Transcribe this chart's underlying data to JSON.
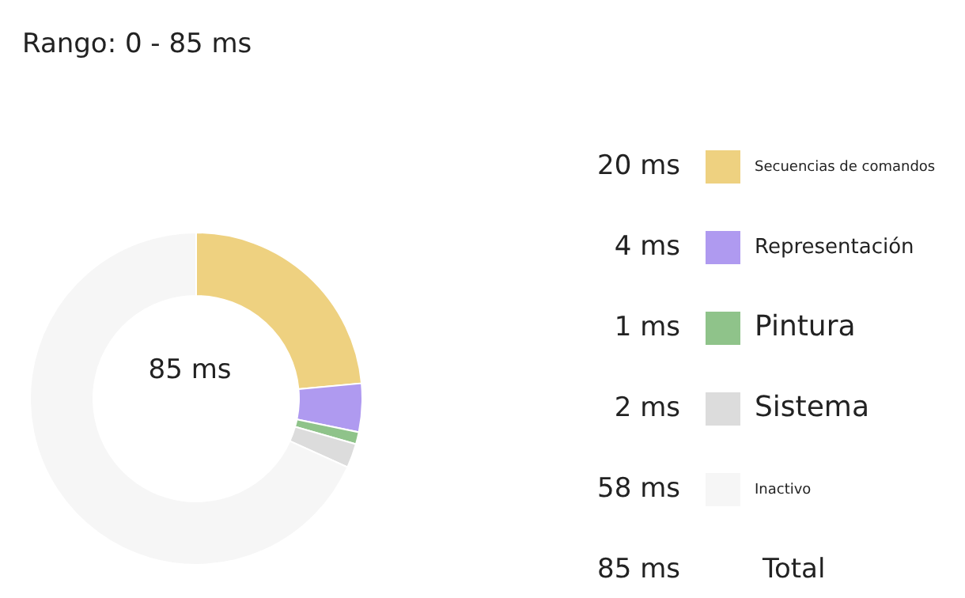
{
  "chart_data": {
    "type": "donut",
    "title": "Rango: 0 - 85 ms",
    "categories": [
      "Secuencias de comandos",
      "Representación",
      "Pintura",
      "Sistema",
      "Inactivo"
    ],
    "values": [
      20,
      4,
      1,
      2,
      58
    ],
    "value_labels": [
      "20 ms",
      "4 ms",
      "1 ms",
      "2 ms",
      "58 ms"
    ],
    "colors": [
      "#eed180",
      "#af9af0",
      "#8fc38a",
      "#dcdcdc",
      "#f6f6f6"
    ],
    "legend": "right",
    "annotations": [
      "85 ms",
      "85 ms",
      "Total"
    ]
  }
}
